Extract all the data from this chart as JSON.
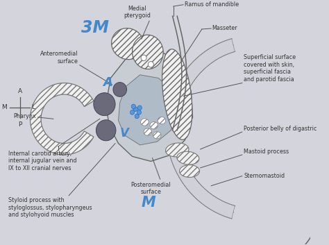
{
  "bg_color": "#d4d4dc",
  "labels": {
    "ramus": "Ramus of mandible",
    "masseter": "Masseter",
    "medial_pterygoid": "Medial\npterygoid",
    "anteromedial": "Anteromedial\nsurface",
    "pharynx": "Pharynx",
    "superficial": "Superficial surface\ncovered with skin,\nsuperficial fascia\nand parotid fascia",
    "posterior_belly": "Posterior belly of digastric",
    "mastoid": "Mastoid process",
    "sternomastoid": "Sternomastoid",
    "internal_carotid": "Internal carotid artery,\ninternal jugular vein and\nIX to XII cranial nerves",
    "posteromedial": "Posteromedial\nsurface",
    "styloid": "Styloid process with\nstyloglossus, stylopharyngeus\nand stylohyoid muscles",
    "mnemonic_top": "3M",
    "mnemonic_A": "A",
    "mnemonic_V": "V",
    "mnemonic_bottom": "M"
  },
  "colors": {
    "outline": "#555555",
    "gland_fill": "#c8cdd4",
    "gland_inner": "#b0bbc8",
    "dark_circle": "#606070",
    "blue_text": "#4488cc",
    "hatch_fc": "#ffffff",
    "hatch_ec": "#777777",
    "shell_fill": "#d8d8dc",
    "line_color": "#555555",
    "text_color": "#333333"
  }
}
